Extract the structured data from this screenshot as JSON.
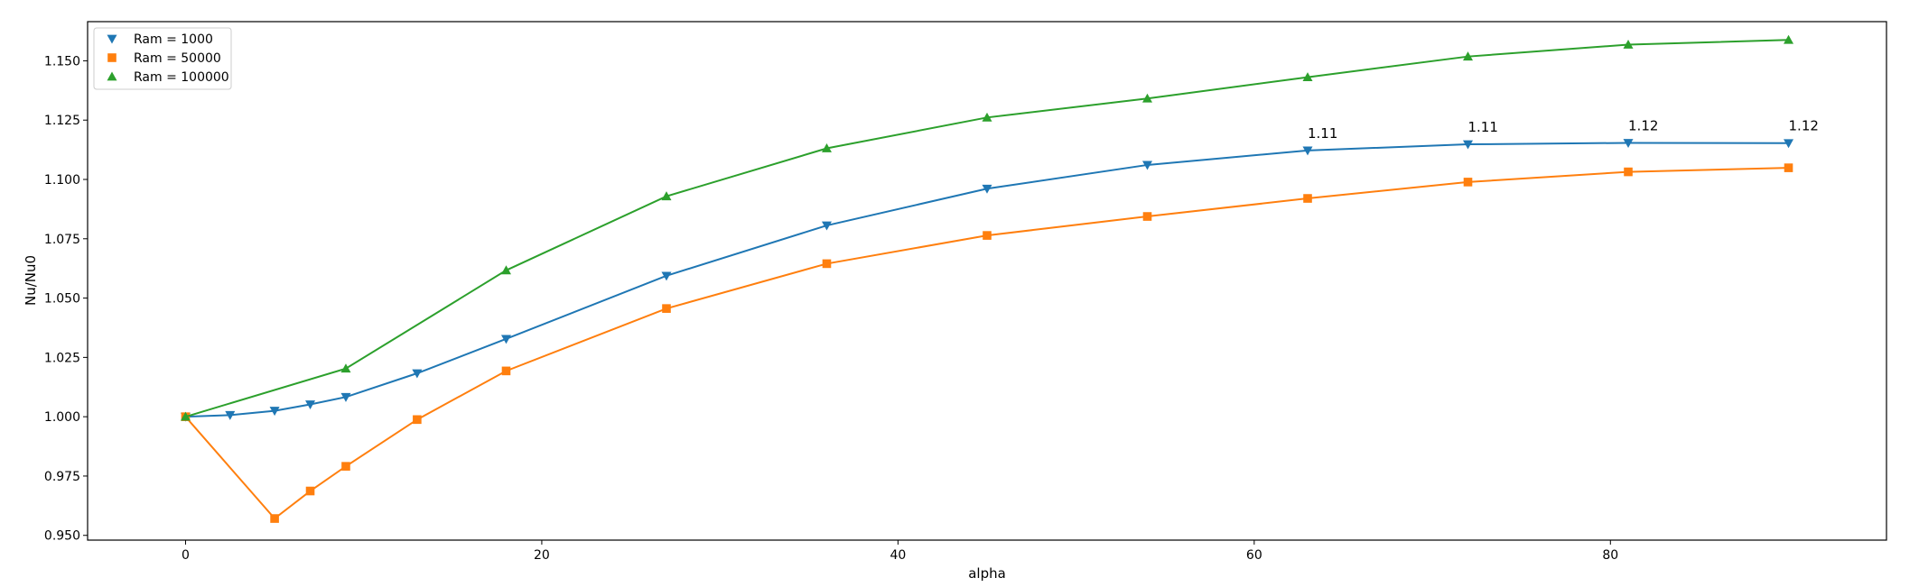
{
  "chart_data": {
    "type": "line",
    "xlabel": "alpha",
    "ylabel": "Nu/Nu0",
    "xlim": [
      -5.5,
      95.5
    ],
    "ylim": [
      0.948,
      1.1665
    ],
    "xticks": [
      0,
      20,
      40,
      60,
      80
    ],
    "xtick_labels": [
      "0",
      "20",
      "40",
      "60",
      "80"
    ],
    "yticks": [
      0.95,
      0.975,
      1.0,
      1.025,
      1.05,
      1.075,
      1.1,
      1.125,
      1.15
    ],
    "ytick_labels": [
      "0.950",
      "0.975",
      "1.000",
      "1.025",
      "1.050",
      "1.075",
      "1.100",
      "1.125",
      "1.150"
    ],
    "grid": false,
    "legend_position": "top-left",
    "series": [
      {
        "name": "Ram = 1000",
        "marker": "triangle-down",
        "color": "#1f77b4",
        "x": [
          0,
          2.5,
          5,
          7,
          9,
          13,
          18,
          27,
          36,
          45,
          54,
          63,
          72,
          81,
          90
        ],
        "y": [
          1.0,
          1.0007,
          1.0025,
          1.0052,
          1.0083,
          1.0183,
          1.0328,
          1.0594,
          1.0806,
          1.0961,
          1.1061,
          1.1122,
          1.1148,
          1.1154,
          1.1153
        ]
      },
      {
        "name": "Ram = 50000",
        "marker": "square",
        "color": "#ff7f0e",
        "x": [
          0,
          5,
          7,
          9,
          13,
          18,
          27,
          36,
          45,
          54,
          63,
          72,
          81,
          90
        ],
        "y": [
          1.0,
          0.9571,
          0.9687,
          0.9791,
          0.9988,
          1.0193,
          1.0456,
          1.0645,
          1.0764,
          1.0844,
          1.092,
          1.0989,
          1.1032,
          1.1049
        ]
      },
      {
        "name": "Ram = 100000",
        "marker": "triangle-up",
        "color": "#2ca02c",
        "x": [
          0,
          9,
          18,
          27,
          36,
          45,
          54,
          63,
          72,
          81,
          90
        ],
        "y": [
          1.0,
          1.0203,
          1.0617,
          1.0929,
          1.1131,
          1.1261,
          1.1341,
          1.1431,
          1.1518,
          1.1568,
          1.1588
        ]
      }
    ],
    "annotations": [
      {
        "x": 63,
        "y": 1.1122,
        "text": "1.11"
      },
      {
        "x": 72,
        "y": 1.1148,
        "text": "1.11"
      },
      {
        "x": 81,
        "y": 1.1154,
        "text": "1.12"
      },
      {
        "x": 90,
        "y": 1.1153,
        "text": "1.12"
      }
    ]
  }
}
